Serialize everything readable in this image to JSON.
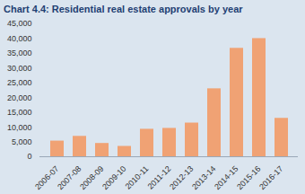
{
  "chart_data": {
    "type": "bar",
    "title": "Chart 4.4: Residential real estate approvals by year",
    "categories": [
      "2006-07",
      "2007-08",
      "2008-09",
      "2009-10",
      "2010-11",
      "2011-12",
      "2012-13",
      "2013-14",
      "2014-15",
      "2015-16",
      "2016-17"
    ],
    "values": [
      5300,
      6900,
      4500,
      3500,
      9300,
      9600,
      11400,
      23000,
      36700,
      40000,
      13000
    ],
    "color": "#f0a274",
    "ylim": [
      0,
      45000
    ],
    "yticks": [
      0,
      {
        "value": 5000,
        "label": "5,000"
      },
      {
        "value": 10000,
        "label": "10,000"
      },
      {
        "value": 15000,
        "label": "15,000"
      },
      {
        "value": 20000,
        "label": "20,000"
      },
      {
        "value": 25000,
        "label": "25,000"
      },
      {
        "value": 30000,
        "label": "30,000"
      },
      {
        "value": 35000,
        "label": "35,000"
      },
      {
        "value": 40000,
        "label": "40,000"
      },
      {
        "value": 45000,
        "label": "45,000"
      }
    ],
    "grid": false
  }
}
